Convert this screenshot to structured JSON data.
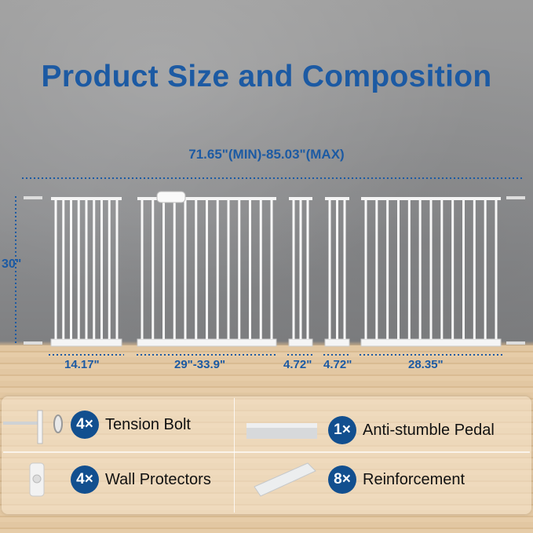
{
  "title": "Product Size and Composition",
  "dimensions": {
    "total_width": "71.65\"(MIN)-85.03\"(MAX)",
    "height": "30\"",
    "sections": [
      "14.17\"",
      "29\"-33.9\"",
      "4.72\"",
      "4.72\"",
      "28.35\""
    ]
  },
  "accessories": [
    {
      "count": "4×",
      "name": "Tension Bolt",
      "icon": "tension-bolt-icon"
    },
    {
      "count": "1×",
      "name": "Anti-stumble Pedal",
      "icon": "pedal-icon"
    },
    {
      "count": "4×",
      "name": "Wall Protectors",
      "icon": "wall-protector-icon"
    },
    {
      "count": "8×",
      "name": "Reinforcement",
      "icon": "reinforcement-icon"
    }
  ],
  "colors": {
    "accent": "#1c5aa3",
    "badge": "#124f8f"
  }
}
